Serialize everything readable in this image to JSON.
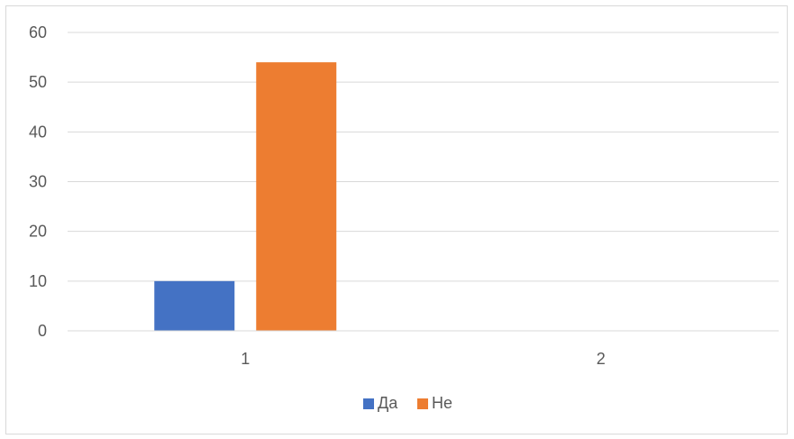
{
  "chart_data": {
    "type": "bar",
    "title": "",
    "xlabel": "",
    "ylabel": "",
    "categories": [
      "1",
      "2"
    ],
    "series": [
      {
        "name": "Да",
        "values": [
          10,
          0
        ],
        "color": "#4472C4"
      },
      {
        "name": "Не",
        "values": [
          54,
          0
        ],
        "color": "#ED7D31"
      }
    ],
    "ylim": [
      0,
      60
    ],
    "yticks": [
      0,
      10,
      20,
      30,
      40,
      50,
      60
    ],
    "grid": true,
    "legend_position": "bottom"
  }
}
